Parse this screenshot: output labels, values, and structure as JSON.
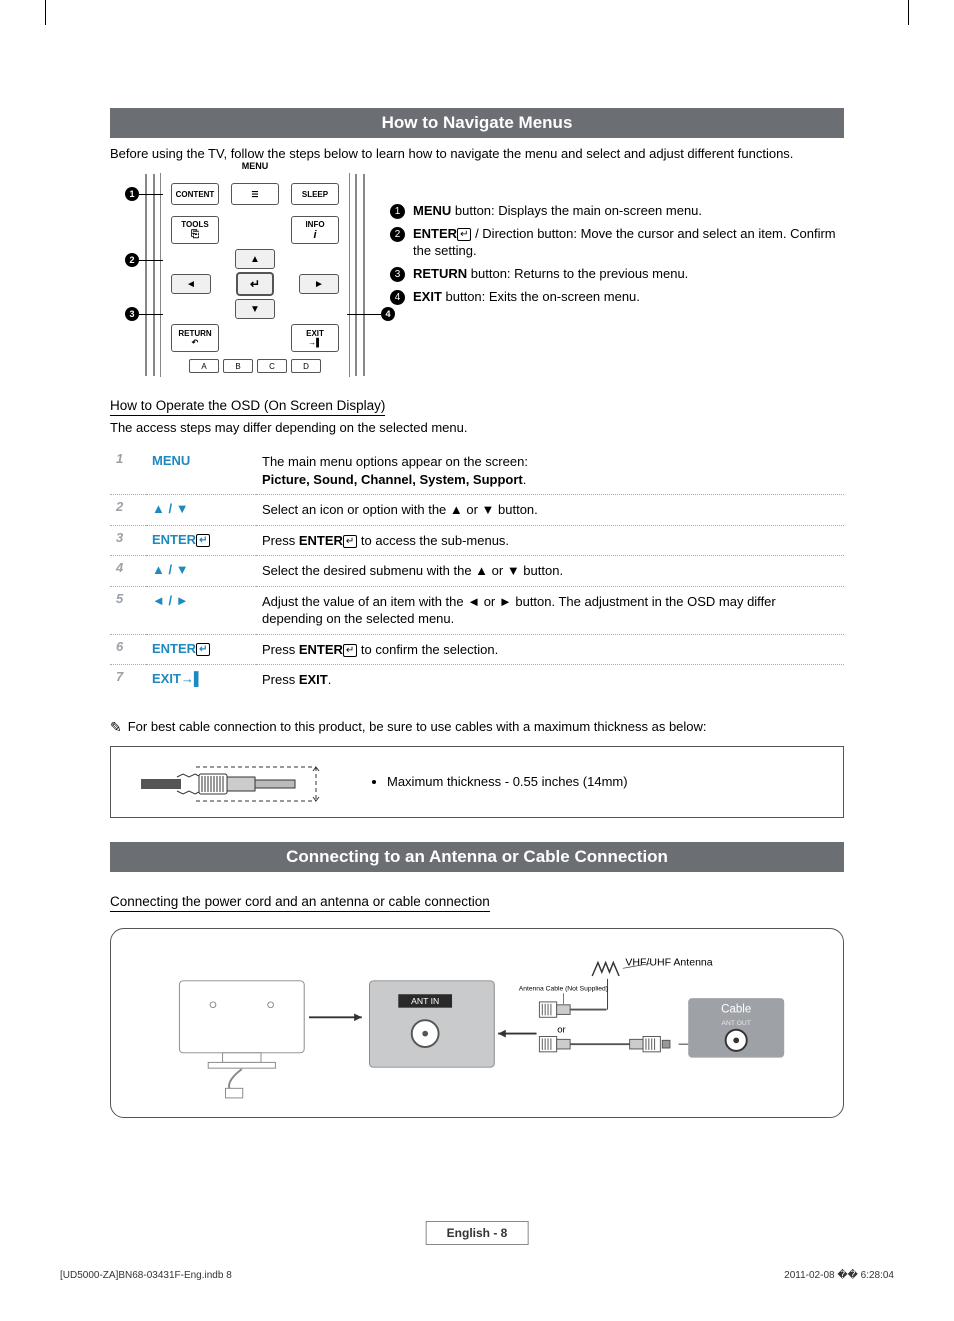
{
  "section1": {
    "title": "How to Navigate Menus",
    "intro": "Before using the TV, follow the steps below to learn how to navigate the menu and select and adjust different functions."
  },
  "remote": {
    "menu_label": "MENU",
    "content": "CONTENT",
    "sleep": "SLEEP",
    "tools": "TOOLS",
    "info": "INFO",
    "return": "RETURN",
    "exit": "EXIT",
    "colors": [
      "A",
      "B",
      "C",
      "D"
    ]
  },
  "legend": [
    {
      "n": "1",
      "html": "<b>MENU</b> button: Displays the main on-screen menu."
    },
    {
      "n": "2",
      "html": "<b>ENTER</b><span class='enter-glyph'>↵</span> / Direction button: Move the cursor and select an item. Confirm the setting."
    },
    {
      "n": "3",
      "html": "<b>RETURN</b> button: Returns to the previous menu."
    },
    {
      "n": "4",
      "html": "<b>EXIT</b> button: Exits the on-screen menu."
    }
  ],
  "osd": {
    "subheader": "How to Operate the OSD (On Screen Display)",
    "subtext": "The access steps may differ depending on the selected menu."
  },
  "steps": [
    {
      "n": "1",
      "key": "MENU",
      "desc": "The main menu options appear on the screen:<br><b>Picture, Sound, Channel, System, Support</b>."
    },
    {
      "n": "2",
      "key": "▲ / ▼",
      "desc": "Select an icon or option with the ▲ or ▼ button."
    },
    {
      "n": "3",
      "key": "ENTER<span class='enter-glyph'>↵</span>",
      "desc": "Press <b>ENTER</b><span class='enter-glyph'>↵</span> to access the sub-menus."
    },
    {
      "n": "4",
      "key": "▲ / ▼",
      "desc": "Select the desired submenu with the ▲ or ▼ button."
    },
    {
      "n": "5",
      "key": "◄ / ►",
      "desc": "Adjust the value of an item with the ◄ or ► button. The adjustment in the OSD may differ depending on the selected menu."
    },
    {
      "n": "6",
      "key": "ENTER<span class='enter-glyph'>↵</span>",
      "desc": "Press <b>ENTER</b><span class='enter-glyph'>↵</span> to confirm the selection."
    },
    {
      "n": "7",
      "key": "EXIT→▌",
      "desc": "Press <b>EXIT</b>."
    }
  ],
  "cablenote": {
    "text": "For best cable connection to this product, be sure to use cables with a maximum thickness as below:",
    "bullet": "Maximum thickness - 0.55 inches (14mm)"
  },
  "section2": {
    "title": "Connecting to an Antenna or Cable Connection",
    "subheader": "Connecting the power cord and an antenna or cable connection"
  },
  "conn": {
    "vhf": "VHF/UHF Antenna",
    "antcable": "Antenna Cable (Not Supplied)",
    "antin": "ANT IN",
    "or": "or",
    "cable": "Cable",
    "antout": "ANT OUT"
  },
  "footer": {
    "page": "English - 8",
    "left": "[UD5000-ZA]BN68-03431F-Eng.indb   8",
    "right": "2011-02-08   �� 6:28:04"
  },
  "colors": {
    "header_bg": "#6b6e73",
    "accent_blue": "#1d89c0",
    "step_grey": "#9aa1a8"
  }
}
